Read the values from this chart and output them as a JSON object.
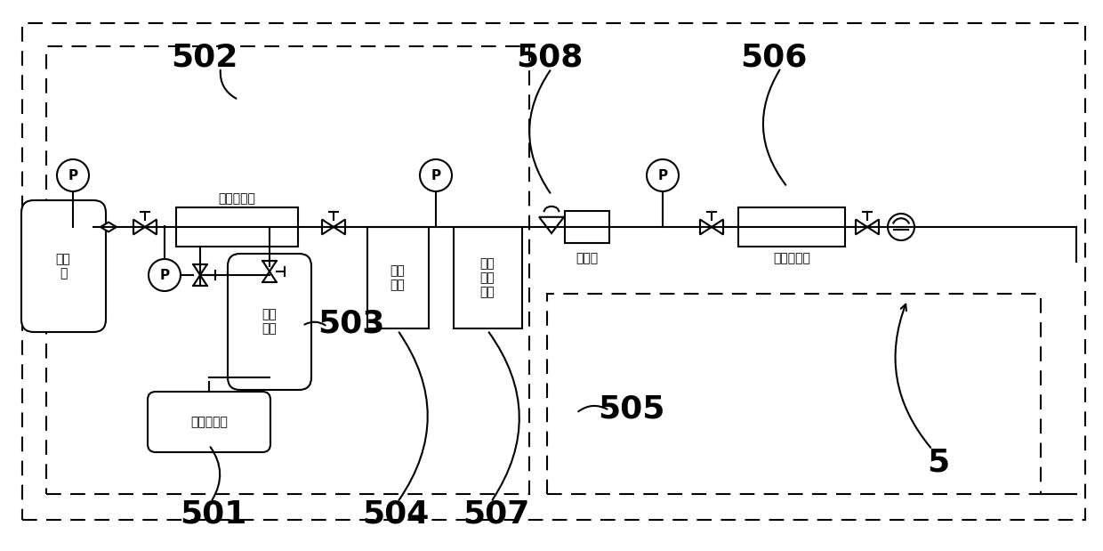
{
  "bg_color": "#ffffff",
  "line_color": "#000000",
  "figsize": [
    12.4,
    6.19
  ],
  "dpi": 100,
  "xlim": [
    0,
    1240
  ],
  "ylim": [
    0,
    619
  ],
  "lw": 1.5,
  "label_fontsize": 26,
  "component_fontsize": 10,
  "p_gauge_r": 18,
  "valve_size": 13,
  "needle_size": 12
}
